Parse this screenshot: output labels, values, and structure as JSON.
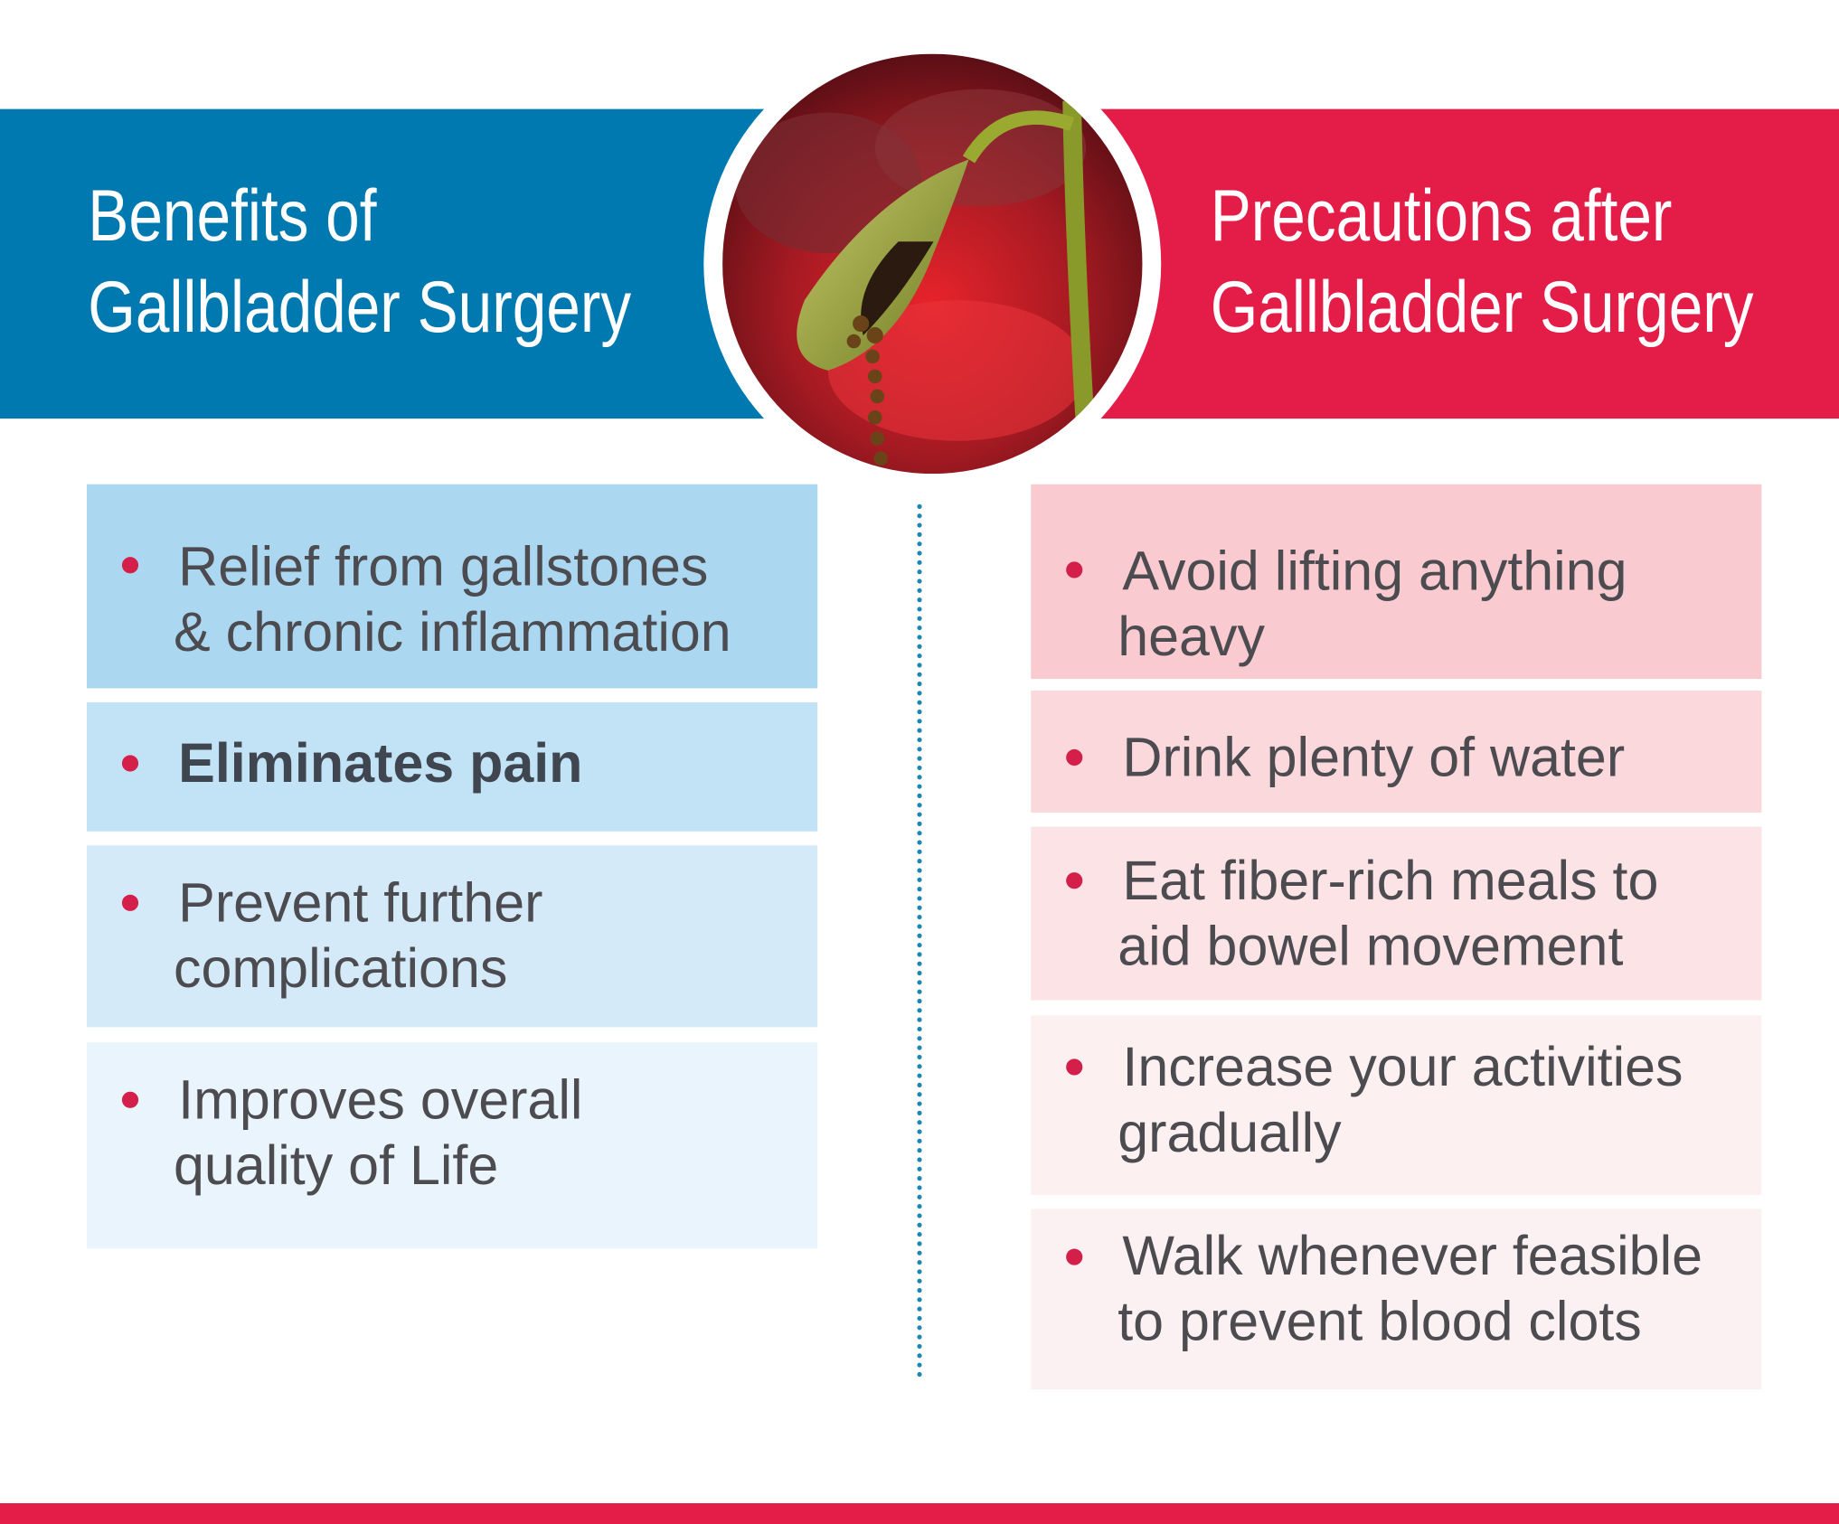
{
  "colors": {
    "blue": "#0079b1",
    "red": "#e31c48",
    "bullet": "#d41f4a",
    "text": "#4b4b50"
  },
  "left": {
    "title_line1": "Benefits of",
    "title_line2": "Gallbladder Surgery",
    "items": [
      {
        "line1": "Relief from gallstones",
        "line2": "& chronic inflammation",
        "bg": "#acd7f1"
      },
      {
        "line1": "Eliminates pain",
        "line2": "",
        "bg": "#c2e2f6",
        "bold": true
      },
      {
        "line1": "Prevent further",
        "line2": "complications",
        "bg": "#d5eaf8"
      },
      {
        "line1": "Improves overall",
        "line2": "quality of Life",
        "bg": "#eaf4fc"
      }
    ]
  },
  "right": {
    "title_line1": "Precautions after",
    "title_line2": "Gallbladder Surgery",
    "items": [
      {
        "line1": "Avoid lifting anything",
        "line2": "heavy",
        "bg": "#f9cbd0"
      },
      {
        "line1": "Drink plenty of water",
        "line2": "",
        "bg": "#fad8dc"
      },
      {
        "line1": "Eat fiber-rich meals to",
        "line2": "aid bowel movement",
        "bg": "#fbe3e6"
      },
      {
        "line1": "Increase your activities",
        "line2": "gradually",
        "bg": "#fcf0f1"
      },
      {
        "line1": "Walk whenever feasible",
        "line2": "to prevent blood clots",
        "bg": "#fcf1f2"
      }
    ]
  },
  "illustration": {
    "icon": "gallbladder-with-gallstones-image"
  }
}
